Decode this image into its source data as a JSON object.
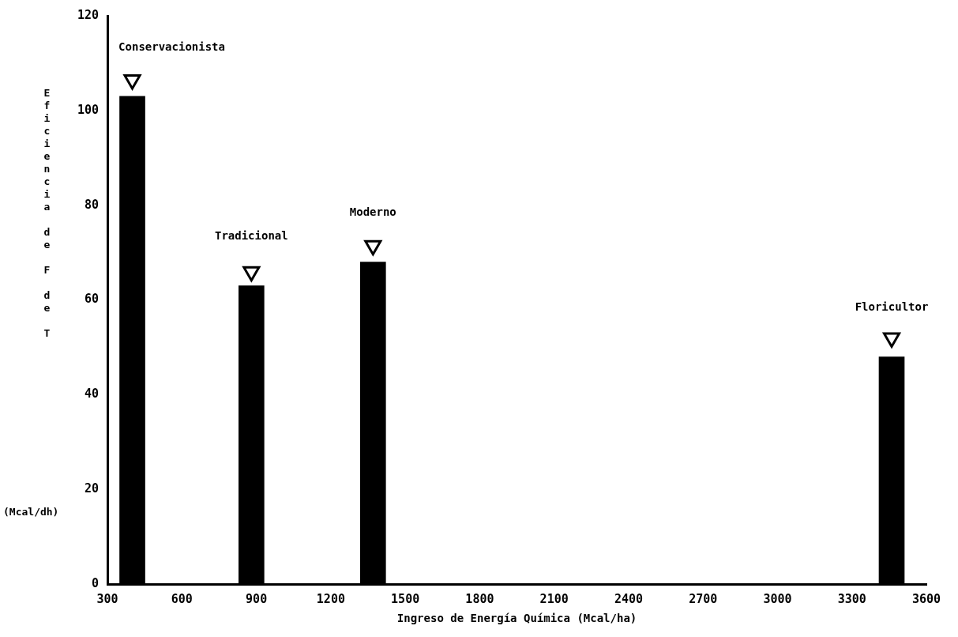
{
  "chart_data": {
    "type": "bar",
    "xlabel": "Ingreso de Energía Química (Mcal/ha)",
    "ylabel": "Eficiencia de F de T (Mcal/dh)",
    "x": [
      400,
      880,
      1370,
      3460
    ],
    "series": [
      {
        "color": "#000000",
        "values": [
          103,
          63,
          68,
          48
        ]
      },
      {
        "type": "scatter",
        "color": "#000000",
        "marker": "triangle",
        "values": [
          106.5,
          66,
          71.5,
          52
        ]
      }
    ],
    "xlim": [
      300,
      3600
    ],
    "xticks": [
      300,
      600,
      900,
      1200,
      1500,
      1800,
      2100,
      2400,
      2700,
      3000,
      3300,
      3600
    ],
    "ylim": [
      0,
      120
    ],
    "yticks": [
      0,
      20,
      40,
      60,
      80,
      100,
      120
    ],
    "grid": false,
    "legend": false,
    "annotations": [
      "Conservacionista",
      "Tradicional",
      "Moderno",
      "Floricultor"
    ]
  }
}
